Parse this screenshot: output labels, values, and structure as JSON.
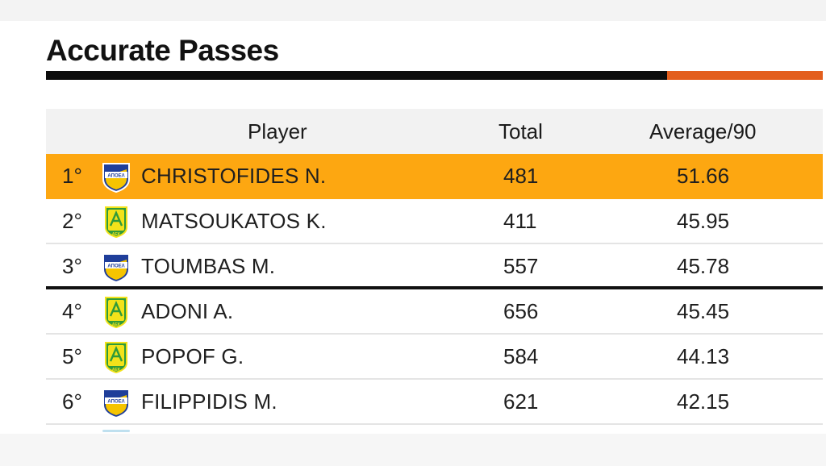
{
  "title": "Accurate Passes",
  "colors": {
    "title_rule_dark": "#0d0d0d",
    "title_rule_accent": "#e35e1d",
    "highlight_row": "#fda711",
    "apoel_blue": "#1f3e9a",
    "apoel_yellow": "#f5c400",
    "aek_green": "#2f9a3a",
    "aek_yellow": "#f2e21a"
  },
  "table": {
    "headers": {
      "player": "Player",
      "total": "Total",
      "average": "Average/90"
    },
    "rows": [
      {
        "rank": "1°",
        "crest": "apoel-crest-icon",
        "crest_text": "ΑΠΟΕΛ",
        "player": "CHRISTOFIDES N.",
        "total": "481",
        "average": "51.66"
      },
      {
        "rank": "2°",
        "crest": "aek-crest-icon",
        "crest_text": "ΑΕΚ",
        "player": "MATSOUKATOS K.",
        "total": "411",
        "average": "45.95"
      },
      {
        "rank": "3°",
        "crest": "apoel-crest-icon",
        "crest_text": "ΑΠΟΕΛ",
        "player": "TOUMBAS M.",
        "total": "557",
        "average": "45.78"
      },
      {
        "rank": "4°",
        "crest": "aek-crest-icon",
        "crest_text": "ΑΕΚ",
        "player": "ADONI A.",
        "total": "656",
        "average": "45.45"
      },
      {
        "rank": "5°",
        "crest": "aek-crest-icon",
        "crest_text": "ΑΕΚ",
        "player": "POPOF G.",
        "total": "584",
        "average": "44.13"
      },
      {
        "rank": "6°",
        "crest": "apoel-crest-icon",
        "crest_text": "ΑΠΟΕΛ",
        "player": "FILIPPIDIS M.",
        "total": "621",
        "average": "42.15"
      }
    ]
  }
}
